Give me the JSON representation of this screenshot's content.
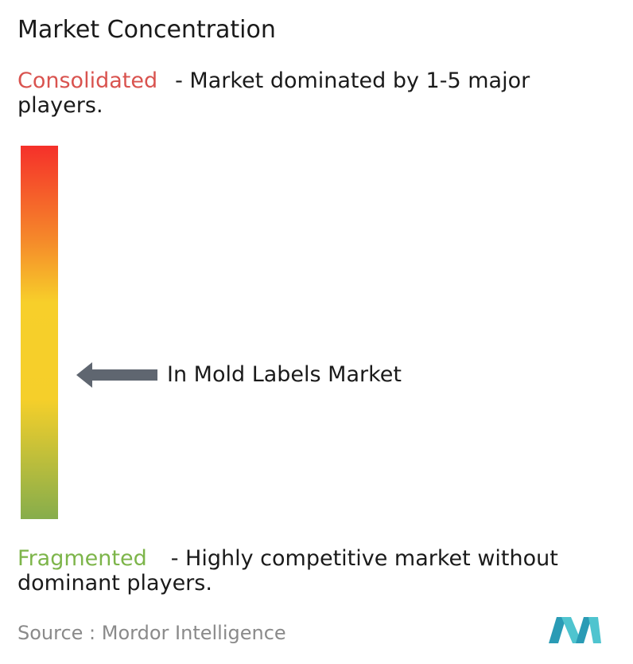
{
  "title": "Market Concentration",
  "consolidated": {
    "label": "Consolidated",
    "description": "- Market dominated by 1-5 major players."
  },
  "marker": {
    "label": "In Mold Labels Market"
  },
  "fragmented": {
    "label": "Fragmented",
    "description": "- Highly competitive market without dominant players."
  },
  "source": "Source : Mordor Intelligence"
}
